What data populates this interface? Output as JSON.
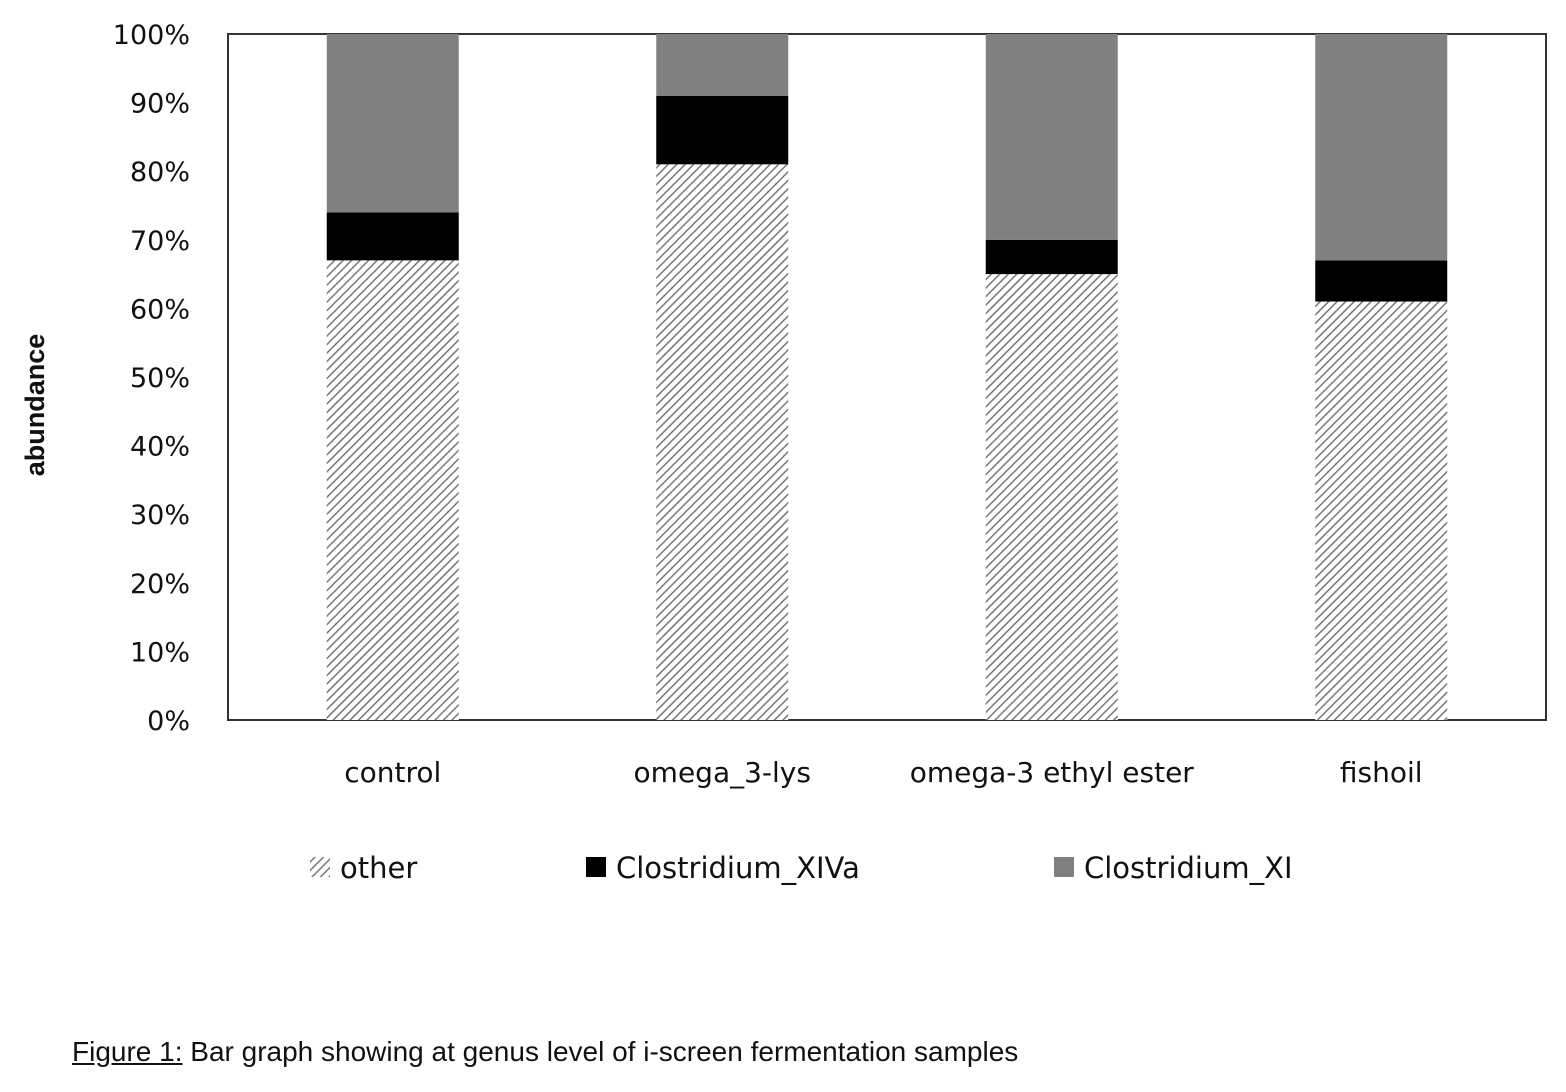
{
  "chart_data": {
    "type": "bar",
    "stacked": true,
    "normalized": true,
    "categories": [
      "control",
      "omega_3-lys",
      "omega-3 ethyl ester",
      "fishoil"
    ],
    "series": [
      {
        "name": "other",
        "values": [
          67,
          81,
          65,
          61
        ],
        "color": "#ffffff",
        "pattern": "diagonal-hatch"
      },
      {
        "name": "Clostridium_XIVa",
        "values": [
          7,
          10,
          5,
          6
        ],
        "color": "#000000"
      },
      {
        "name": "Clostridium_XI",
        "values": [
          26,
          9,
          30,
          33
        ],
        "color": "#808080"
      }
    ],
    "yticks": [
      "0%",
      "10%",
      "20%",
      "30%",
      "40%",
      "50%",
      "60%",
      "70%",
      "80%",
      "90%",
      "100%"
    ],
    "ylabel": "abundance",
    "xlabel": "",
    "ylim": [
      0,
      100
    ],
    "legend_position": "bottom",
    "grid": false
  },
  "caption": {
    "label": "Figure 1:",
    "text": " Bar graph showing at genus level of i-screen fermentation samples"
  }
}
